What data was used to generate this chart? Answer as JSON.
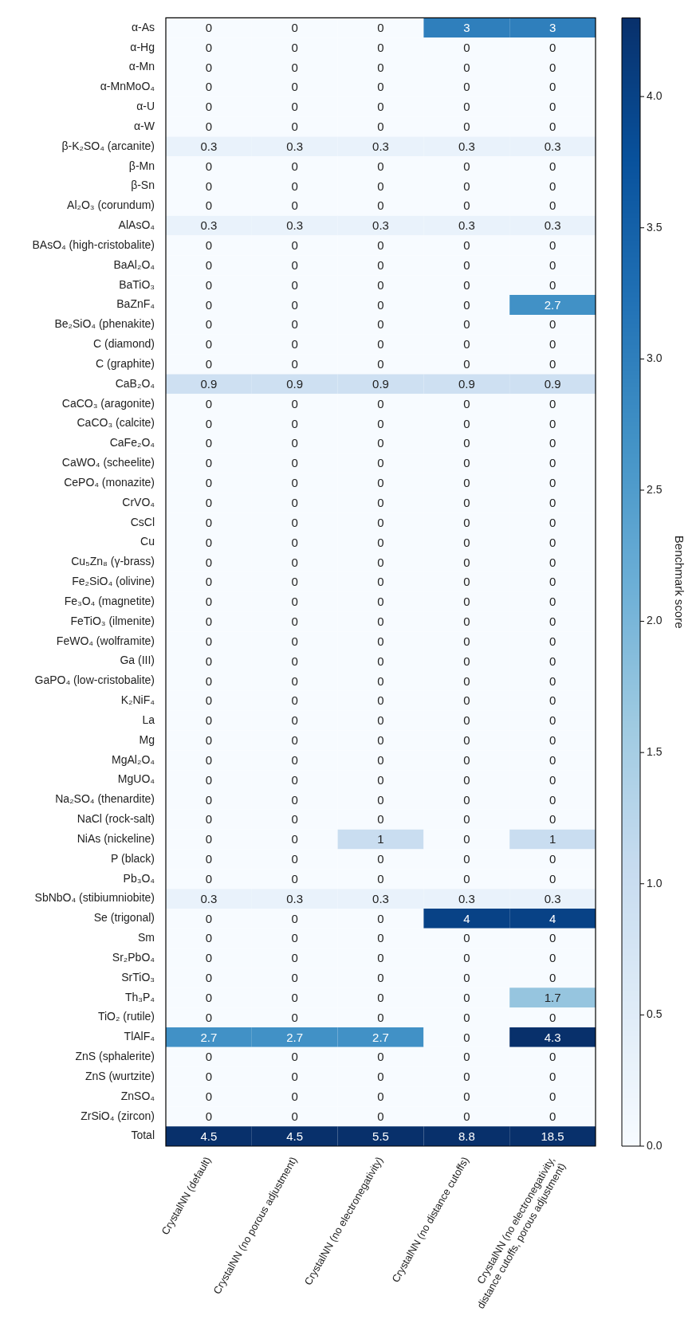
{
  "chart_data": {
    "type": "heatmap",
    "categories": [
      "CrystalNN (default)",
      "CrystalNN (no porous adjustment)",
      "CrystalNN (no electronegativity)",
      "CrystalNN (no distance cutoffs)",
      "CrystalNN (no electronegativity,\ndistance cutoffs, porous adjustment)"
    ],
    "y_categories": [
      "α-As",
      "α-Hg",
      "α-Mn",
      "α-MnMoO₄",
      "α-U",
      "α-W",
      "β-K₂SO₄ (arcanite)",
      "β-Mn",
      "β-Sn",
      "Al₂O₃ (corundum)",
      "AlAsO₄",
      "BAsO₄ (high-cristobalite)",
      "BaAl₂O₄",
      "BaTiO₃",
      "BaZnF₄",
      "Be₂SiO₄ (phenakite)",
      "C (diamond)",
      "C (graphite)",
      "CaB₂O₄",
      "CaCO₃ (aragonite)",
      "CaCO₃ (calcite)",
      "CaFe₂O₄",
      "CaWO₄ (scheelite)",
      "CePO₄ (monazite)",
      "CrVO₄",
      "CsCl",
      "Cu",
      "Cu₅Zn₈ (γ-brass)",
      "Fe₂SiO₄ (olivine)",
      "Fe₃O₄ (magnetite)",
      "FeTiO₃ (ilmenite)",
      "FeWO₄ (wolframite)",
      "Ga (III)",
      "GaPO₄ (low-cristobalite)",
      "K₂NiF₄",
      "La",
      "Mg",
      "MgAl₂O₄",
      "MgUO₄",
      "Na₂SO₄ (thenardite)",
      "NaCl (rock-salt)",
      "NiAs (nickeline)",
      "P (black)",
      "Pb₃O₄",
      "SbNbO₄ (stibiumniobite)",
      "Se (trigonal)",
      "Sm",
      "Sr₂PbO₄",
      "SrTiO₃",
      "Th₃P₄",
      "TiO₂ (rutile)",
      "TlAlF₄",
      "ZnS (sphalerite)",
      "ZnS (wurtzite)",
      "ZnSO₄",
      "ZrSiO₄ (zircon)",
      "Total"
    ],
    "cells": [
      [
        0,
        0,
        0,
        3,
        3
      ],
      [
        0,
        0,
        0,
        0,
        0
      ],
      [
        0,
        0,
        0,
        0,
        0
      ],
      [
        0,
        0,
        0,
        0,
        0
      ],
      [
        0,
        0,
        0,
        0,
        0
      ],
      [
        0,
        0,
        0,
        0,
        0
      ],
      [
        0.3,
        0.3,
        0.3,
        0.3,
        0.3
      ],
      [
        0,
        0,
        0,
        0,
        0
      ],
      [
        0,
        0,
        0,
        0,
        0
      ],
      [
        0,
        0,
        0,
        0,
        0
      ],
      [
        0.3,
        0.3,
        0.3,
        0.3,
        0.3
      ],
      [
        0,
        0,
        0,
        0,
        0
      ],
      [
        0,
        0,
        0,
        0,
        0
      ],
      [
        0,
        0,
        0,
        0,
        0
      ],
      [
        0,
        0,
        0,
        0,
        2.7
      ],
      [
        0,
        0,
        0,
        0,
        0
      ],
      [
        0,
        0,
        0,
        0,
        0
      ],
      [
        0,
        0,
        0,
        0,
        0
      ],
      [
        0.9,
        0.9,
        0.9,
        0.9,
        0.9
      ],
      [
        0,
        0,
        0,
        0,
        0
      ],
      [
        0,
        0,
        0,
        0,
        0
      ],
      [
        0,
        0,
        0,
        0,
        0
      ],
      [
        0,
        0,
        0,
        0,
        0
      ],
      [
        0,
        0,
        0,
        0,
        0
      ],
      [
        0,
        0,
        0,
        0,
        0
      ],
      [
        0,
        0,
        0,
        0,
        0
      ],
      [
        0,
        0,
        0,
        0,
        0
      ],
      [
        0,
        0,
        0,
        0,
        0
      ],
      [
        0,
        0,
        0,
        0,
        0
      ],
      [
        0,
        0,
        0,
        0,
        0
      ],
      [
        0,
        0,
        0,
        0,
        0
      ],
      [
        0,
        0,
        0,
        0,
        0
      ],
      [
        0,
        0,
        0,
        0,
        0
      ],
      [
        0,
        0,
        0,
        0,
        0
      ],
      [
        0,
        0,
        0,
        0,
        0
      ],
      [
        0,
        0,
        0,
        0,
        0
      ],
      [
        0,
        0,
        0,
        0,
        0
      ],
      [
        0,
        0,
        0,
        0,
        0
      ],
      [
        0,
        0,
        0,
        0,
        0
      ],
      [
        0,
        0,
        0,
        0,
        0
      ],
      [
        0,
        0,
        0,
        0,
        0
      ],
      [
        0,
        0,
        1,
        0,
        1
      ],
      [
        0,
        0,
        0,
        0,
        0
      ],
      [
        0,
        0,
        0,
        0,
        0
      ],
      [
        0.3,
        0.3,
        0.3,
        0.3,
        0.3
      ],
      [
        0,
        0,
        0,
        4,
        4
      ],
      [
        0,
        0,
        0,
        0,
        0
      ],
      [
        0,
        0,
        0,
        0,
        0
      ],
      [
        0,
        0,
        0,
        0,
        0
      ],
      [
        0,
        0,
        0,
        0,
        1.7
      ],
      [
        0,
        0,
        0,
        0,
        0
      ],
      [
        2.7,
        2.7,
        2.7,
        0,
        4.3
      ],
      [
        0,
        0,
        0,
        0,
        0
      ],
      [
        0,
        0,
        0,
        0,
        0
      ],
      [
        0,
        0,
        0,
        0,
        0
      ],
      [
        0,
        0,
        0,
        0,
        0
      ],
      [
        4.5,
        4.5,
        5.5,
        8.8,
        18.5
      ]
    ],
    "clim": [
      0,
      4.3
    ],
    "cticks": [
      {
        "value": 0,
        "label": "0.0"
      },
      {
        "value": 0.5,
        "label": "0.5"
      },
      {
        "value": 1,
        "label": "1.0"
      },
      {
        "value": 1.5,
        "label": "1.5"
      },
      {
        "value": 2,
        "label": "2.0"
      },
      {
        "value": 2.5,
        "label": "2.5"
      },
      {
        "value": 3,
        "label": "3.0"
      },
      {
        "value": 3.5,
        "label": "3.5"
      },
      {
        "value": 4,
        "label": "4.0"
      }
    ],
    "clabel": "Benchmark score",
    "data_labels": true
  }
}
